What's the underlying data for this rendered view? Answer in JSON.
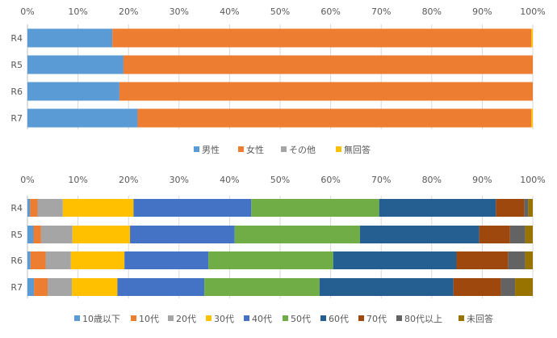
{
  "chart_data": [
    {
      "type": "bar",
      "orientation": "horizontal",
      "stacked": "percent",
      "categories": [
        "R4",
        "R5",
        "R6",
        "R7"
      ],
      "x_ticks": [
        "0%",
        "10%",
        "20%",
        "30%",
        "40%",
        "50%",
        "60%",
        "70%",
        "80%",
        "90%",
        "100%"
      ],
      "xlim": [
        0,
        100
      ],
      "grid": true,
      "legend_position": "bottom",
      "series": [
        {
          "name": "男性",
          "color": "#5b9bd5",
          "values": [
            16.8,
            19.0,
            18.2,
            21.8
          ]
        },
        {
          "name": "女性",
          "color": "#ed7d31",
          "values": [
            82.9,
            81.0,
            81.8,
            77.9
          ]
        },
        {
          "name": "その他",
          "color": "#a5a5a5",
          "values": [
            0.0,
            0.0,
            0.0,
            0.0
          ]
        },
        {
          "name": "無回答",
          "color": "#ffc000",
          "values": [
            0.3,
            0.0,
            0.0,
            0.3
          ]
        }
      ]
    },
    {
      "type": "bar",
      "orientation": "horizontal",
      "stacked": "percent",
      "categories": [
        "R4",
        "R5",
        "R6",
        "R7"
      ],
      "x_ticks": [
        "0%",
        "10%",
        "20%",
        "30%",
        "40%",
        "50%",
        "60%",
        "70%",
        "80%",
        "90%",
        "100%"
      ],
      "xlim": [
        0,
        100
      ],
      "grid": true,
      "legend_position": "bottom",
      "series": [
        {
          "name": "10歳以下",
          "color": "#5b9bd5",
          "values": [
            0.5,
            1.2,
            0.6,
            1.3
          ]
        },
        {
          "name": "10代",
          "color": "#ed7d31",
          "values": [
            1.5,
            1.5,
            3.0,
            2.7
          ]
        },
        {
          "name": "20代",
          "color": "#a5a5a5",
          "values": [
            5.0,
            6.2,
            5.0,
            4.8
          ]
        },
        {
          "name": "30代",
          "color": "#ffc000",
          "values": [
            14.0,
            11.4,
            10.6,
            9.0
          ]
        },
        {
          "name": "40代",
          "color": "#4472c4",
          "values": [
            23.3,
            20.7,
            16.6,
            17.2
          ]
        },
        {
          "name": "50代",
          "color": "#70ad47",
          "values": [
            25.3,
            24.8,
            24.7,
            22.8
          ]
        },
        {
          "name": "60代",
          "color": "#255e91",
          "values": [
            23.1,
            23.6,
            24.4,
            26.5
          ]
        },
        {
          "name": "70代",
          "color": "#9e480e",
          "values": [
            5.6,
            6.1,
            10.2,
            9.4
          ]
        },
        {
          "name": "80代以上",
          "color": "#636363",
          "values": [
            0.8,
            3.0,
            3.4,
            2.8
          ]
        },
        {
          "name": "未回答",
          "color": "#997300",
          "values": [
            0.9,
            1.5,
            1.5,
            3.5
          ]
        }
      ]
    }
  ]
}
